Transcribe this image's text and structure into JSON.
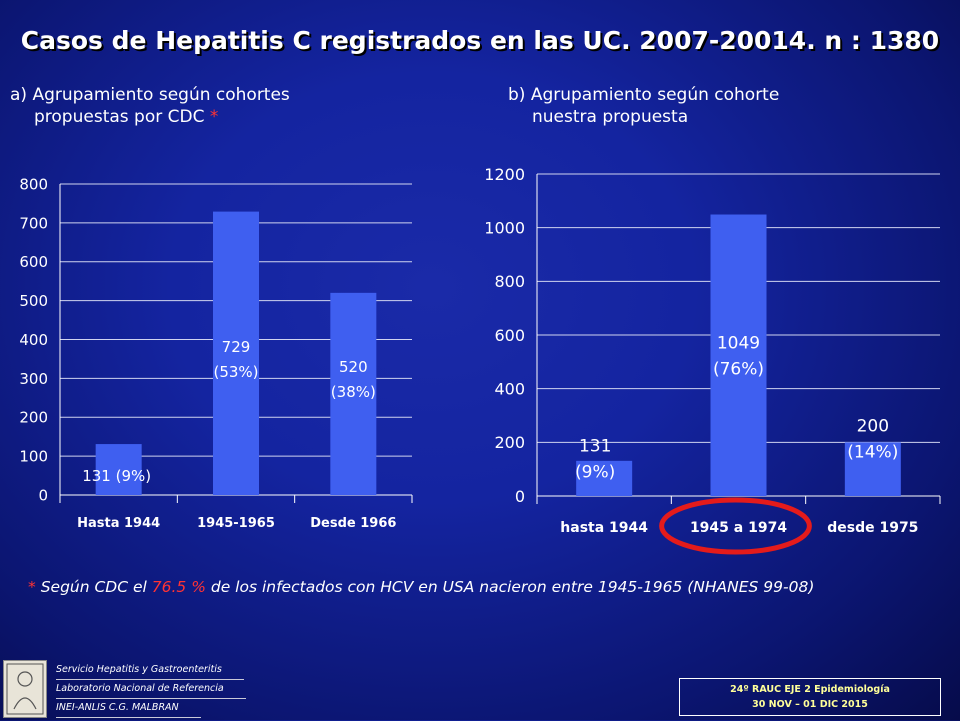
{
  "title": "Casos de Hepatitis C  registrados en las UC. 2007-20014.  n : 1380",
  "subtitle_a": {
    "line1": "a) Agrupamiento según cohortes",
    "line2": "propuestas por CDC",
    "star": "*"
  },
  "subtitle_b": {
    "line1": "b) Agrupamiento según cohorte",
    "line2": "nuestra propuesta"
  },
  "footnote": {
    "star": "*",
    "part1": "Según  CDC  el",
    "pct": "76.5 %",
    "part2": "de los infectados con HCV en USA nacieron entre 1945-1965  (NHANES 99-08)"
  },
  "org": {
    "line1": "Servicio Hepatitis y Gastroenteritis",
    "line2": "Laboratorio Nacional de Referencia",
    "line3": "INEI-ANLIS C.G. MALBRAN"
  },
  "event": {
    "line1": "24º RAUC  EJE 2  Epidemiología",
    "line2": "30 NOV – 01 DIC  2015"
  },
  "colors": {
    "bar": "#3f5ff0",
    "highlight": "#e41b1b",
    "gridline": "#d0d4f0"
  },
  "chart_data": [
    {
      "type": "bar",
      "categories": [
        "Hasta 1944",
        "1945-1965",
        "Desde 1966"
      ],
      "values": [
        131,
        729,
        520
      ],
      "data_labels": [
        [
          "131 (9%)"
        ],
        [
          "729",
          "(53%)"
        ],
        [
          "520",
          "(38%)"
        ]
      ],
      "ylim": [
        0,
        800
      ],
      "yticks": [
        0,
        100,
        200,
        300,
        400,
        500,
        600,
        700,
        800
      ],
      "grid": true
    },
    {
      "type": "bar",
      "categories": [
        "hasta 1944",
        "1945   a 1974",
        "desde 1975"
      ],
      "values": [
        131,
        1049,
        200
      ],
      "data_labels": [
        [
          "131",
          "(9%)"
        ],
        [
          "1049",
          "(76%)"
        ],
        [
          "200",
          "(14%)"
        ]
      ],
      "ylim": [
        0,
        1200
      ],
      "yticks": [
        0,
        200,
        400,
        600,
        800,
        1000,
        1200
      ],
      "grid": true,
      "highlighted_category": "1945   a 1974"
    }
  ]
}
